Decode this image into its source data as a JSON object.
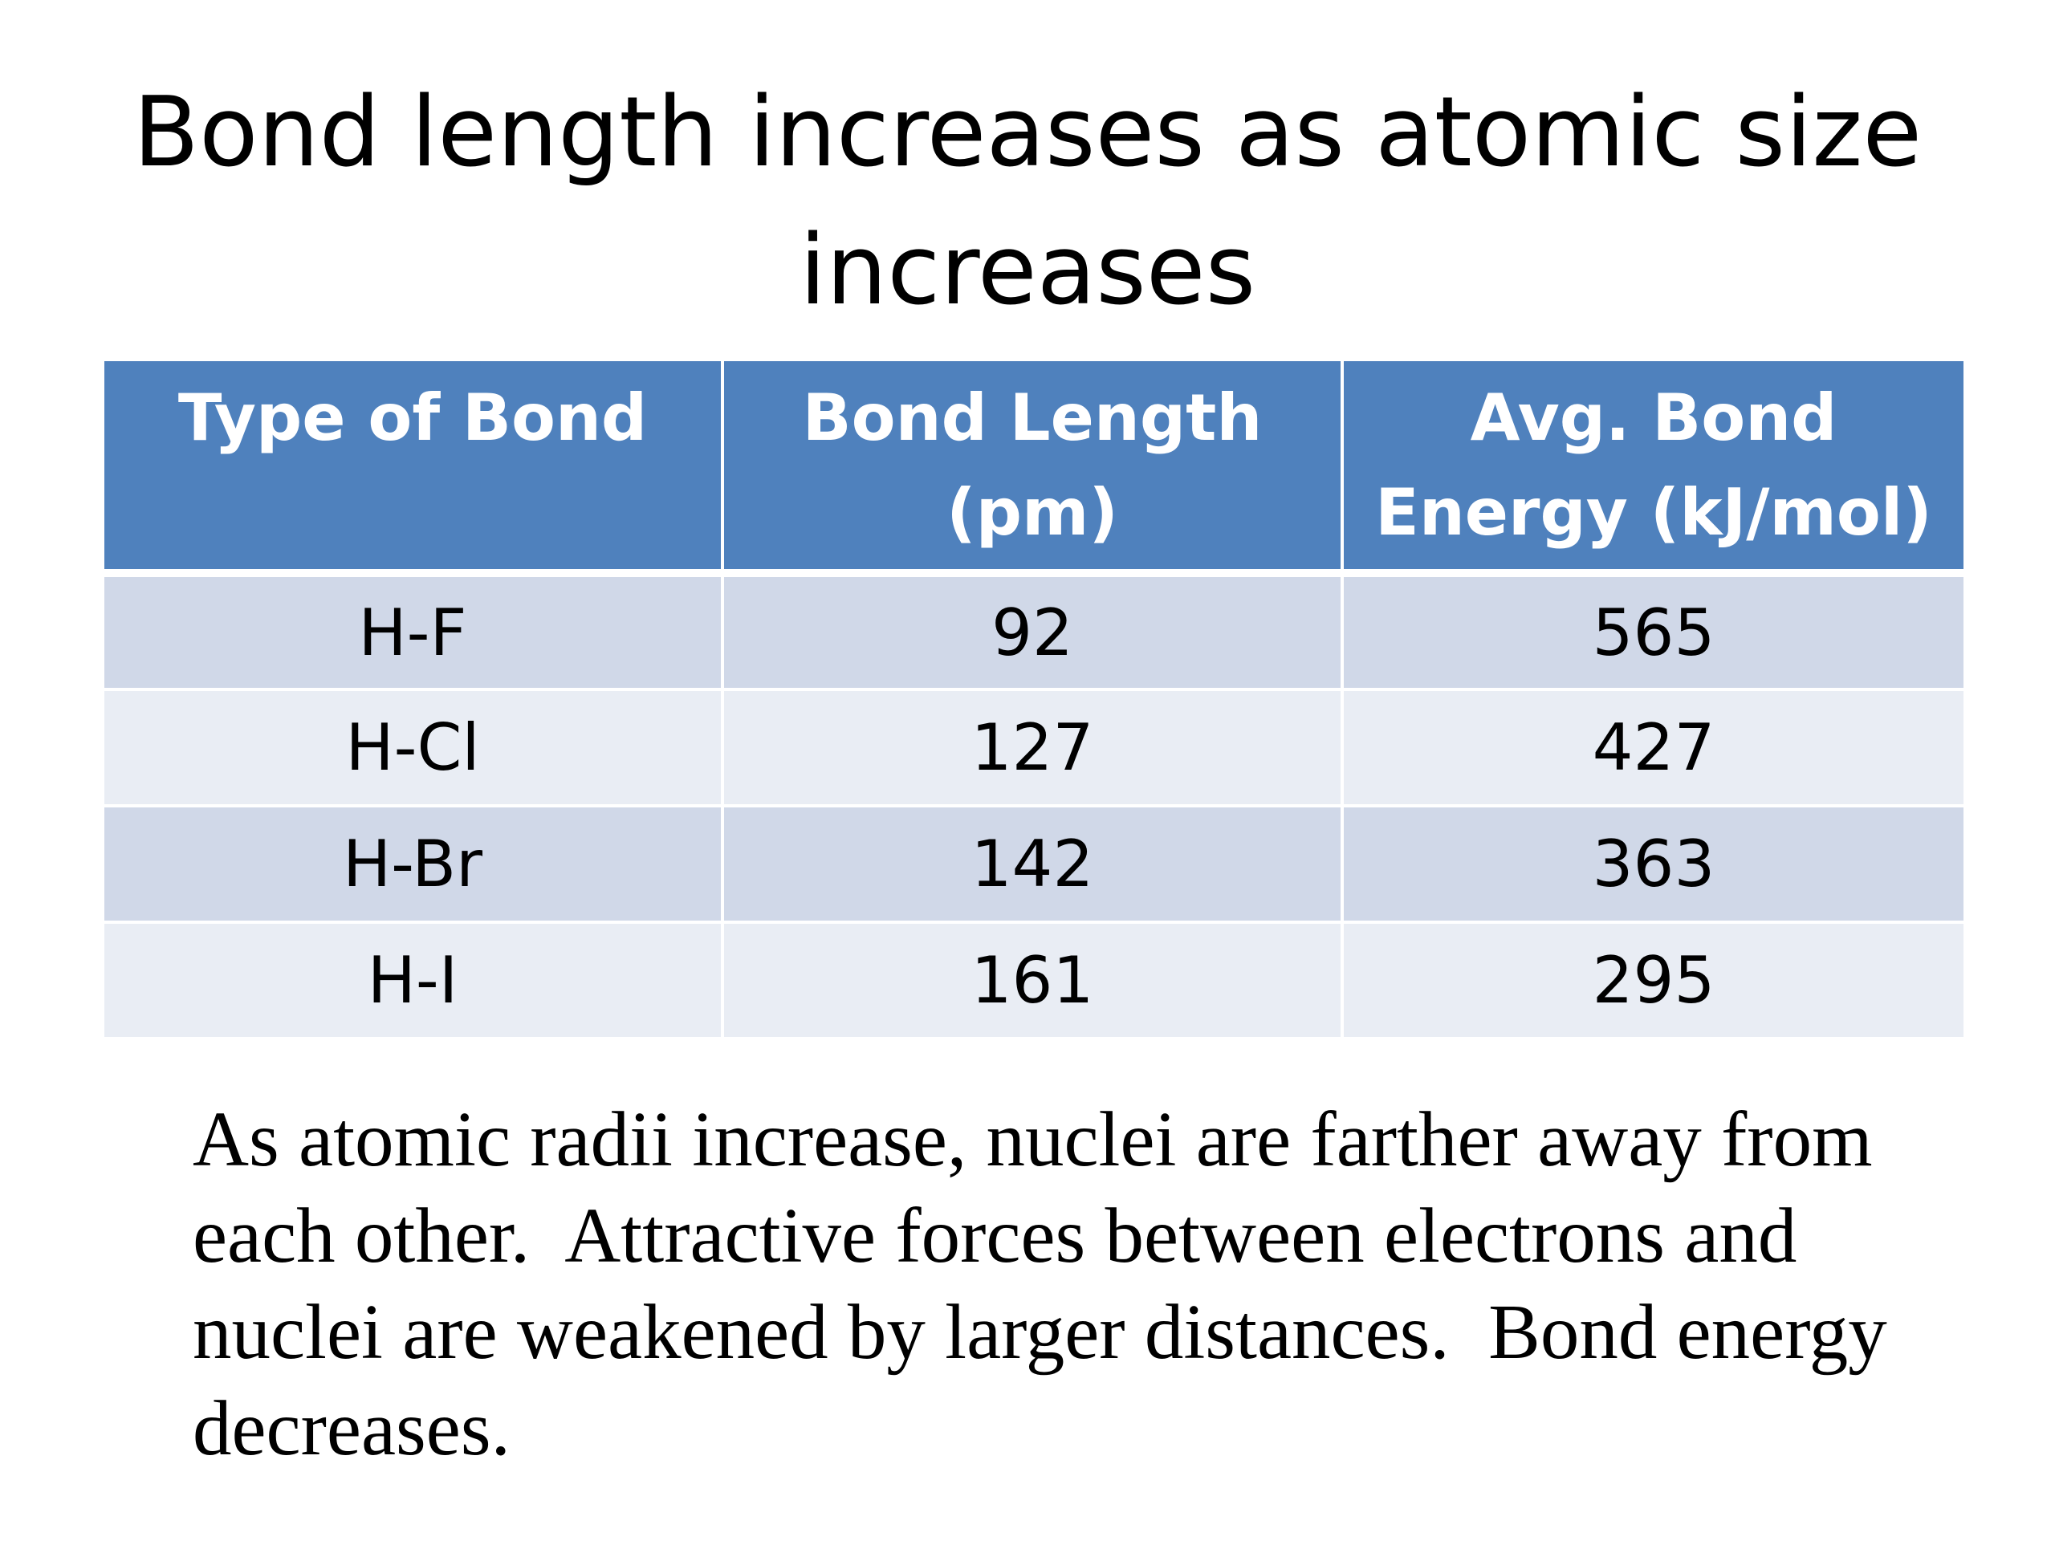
{
  "slide": {
    "title": "Bond length increases as atomic size increases"
  },
  "table": {
    "headers": [
      "Type of Bond",
      "Bond Length (pm)",
      "Avg. Bond Energy (kJ/mol)"
    ],
    "rows": [
      {
        "type": "H-F",
        "length": "92",
        "energy": "565"
      },
      {
        "type": "H-Cl",
        "length": "127",
        "energy": "427"
      },
      {
        "type": "H-Br",
        "length": "142",
        "energy": "363"
      },
      {
        "type": "H-I",
        "length": "161",
        "energy": "295"
      }
    ],
    "colors": {
      "header": "#4f81bd",
      "row_dark": "#d0d8e8",
      "row_light": "#e9edf4"
    }
  },
  "explanation": "As atomic radii increase, nuclei are farther away from each other.  Attractive forces between electrons and nuclei are weakened by larger distances.  Bond energy decreases."
}
